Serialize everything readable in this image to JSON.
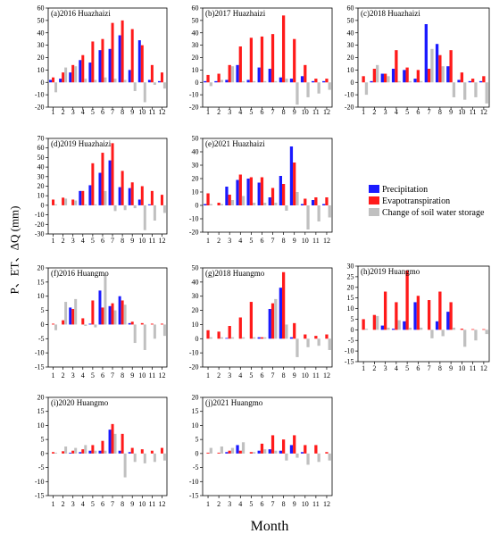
{
  "figure": {
    "ylabel": "P、ET、ΔQ (mm)",
    "xlabel": "Month",
    "legend": [
      {
        "name": "Precipitation",
        "color": "#1a1aff"
      },
      {
        "name": "Evapotranspiration",
        "color": "#ff1a1a"
      },
      {
        "name": "Change of soil water storage",
        "color": "#c0c0c0"
      }
    ]
  },
  "chart_data": [
    {
      "type": "bar",
      "title": "(a)2016 Huazhaizi",
      "categories": [
        "1",
        "2",
        "3",
        "4",
        "5",
        "6",
        "7",
        "8",
        "9",
        "10",
        "11",
        "12"
      ],
      "ylim": [
        -20,
        60
      ],
      "yticks": [
        60,
        50,
        40,
        30,
        20,
        10,
        0,
        -10,
        -20
      ],
      "series": [
        {
          "values": [
            2,
            3,
            8,
            18,
            16,
            26,
            27,
            38,
            10,
            34,
            2,
            1
          ]
        },
        {
          "values": [
            4,
            8,
            14,
            22,
            33,
            35,
            48,
            50,
            43,
            30,
            14,
            8
          ]
        },
        {
          "values": [
            -8,
            12,
            13,
            3,
            2,
            4,
            3,
            2,
            -7,
            -16,
            -2,
            -5
          ]
        }
      ]
    },
    {
      "type": "bar",
      "title": "(b)2017 Huazhaizi",
      "categories": [
        "1",
        "2",
        "3",
        "4",
        "5",
        "6",
        "7",
        "8",
        "9",
        "10",
        "11",
        "12"
      ],
      "ylim": [
        -20,
        60
      ],
      "yticks": [
        60,
        50,
        40,
        30,
        20,
        10,
        0,
        -10,
        -20
      ],
      "series": [
        {
          "values": [
            1,
            1,
            2,
            14,
            2,
            12,
            11,
            4,
            3,
            5,
            1,
            1
          ]
        },
        {
          "values": [
            6,
            7,
            14,
            29,
            36,
            37,
            39,
            54,
            35,
            14,
            3,
            3
          ]
        },
        {
          "values": [
            -3,
            2,
            13,
            1,
            1,
            1,
            1,
            3,
            -18,
            -12,
            -9,
            -6
          ]
        }
      ]
    },
    {
      "type": "bar",
      "title": "(c)2018 Huazhaizi",
      "categories": [
        "1",
        "2",
        "3",
        "4",
        "5",
        "6",
        "7",
        "8",
        "9",
        "10",
        "11",
        "12"
      ],
      "ylim": [
        -20,
        60
      ],
      "yticks": [
        60,
        50,
        40,
        30,
        20,
        10,
        0,
        -10,
        -20
      ],
      "series": [
        {
          "values": [
            0,
            1,
            7,
            11,
            10,
            3,
            47,
            31,
            13,
            2,
            1,
            1
          ]
        },
        {
          "values": [
            5,
            11,
            7,
            26,
            12,
            10,
            11,
            22,
            26,
            8,
            3,
            5
          ]
        },
        {
          "values": [
            -10,
            14,
            5,
            1,
            1,
            1,
            27,
            13,
            -12,
            -14,
            -12,
            -17
          ]
        }
      ]
    },
    {
      "type": "bar",
      "title": "(d)2019 Huazhaizi",
      "categories": [
        "1",
        "2",
        "3",
        "4",
        "5",
        "6",
        "7",
        "8",
        "9",
        "10",
        "11",
        "12"
      ],
      "ylim": [
        -30,
        70
      ],
      "yticks": [
        70,
        60,
        50,
        40,
        30,
        20,
        10,
        0,
        -10,
        -20,
        -30
      ],
      "series": [
        {
          "values": [
            0,
            0,
            0,
            15,
            21,
            34,
            47,
            19,
            18,
            6,
            1,
            0
          ]
        },
        {
          "values": [
            6,
            8,
            6,
            15,
            44,
            55,
            65,
            36,
            24,
            20,
            15,
            11
          ]
        },
        {
          "values": [
            1,
            7,
            5,
            1,
            1,
            15,
            -6,
            -5,
            -3,
            -26,
            -16,
            -8
          ]
        }
      ]
    },
    {
      "type": "bar",
      "title": "(e)2021 Huazhaizi",
      "categories": [
        "1",
        "2",
        "3",
        "4",
        "5",
        "6",
        "7",
        "8",
        "9",
        "10",
        "11",
        "12"
      ],
      "ylim": [
        -20,
        50
      ],
      "yticks": [
        50,
        40,
        30,
        20,
        10,
        0,
        -10,
        -20
      ],
      "series": [
        {
          "values": [
            1,
            0,
            14,
            19,
            20,
            17,
            6,
            22,
            44,
            1,
            4,
            1
          ]
        },
        {
          "values": [
            9,
            2,
            8,
            23,
            21,
            21,
            13,
            16,
            32,
            5,
            6,
            6
          ]
        },
        {
          "values": [
            1,
            1,
            4,
            7,
            2,
            2,
            2,
            -4,
            10,
            -18,
            -12,
            -9
          ]
        }
      ]
    },
    {
      "type": "bar",
      "title": "(f)2016 Huangmo",
      "categories": [
        "1",
        "2",
        "3",
        "4",
        "5",
        "6",
        "7",
        "8",
        "9",
        "10",
        "11",
        "12"
      ],
      "ylim": [
        -15,
        20
      ],
      "yticks": [
        20,
        15,
        10,
        5,
        0,
        -5,
        -10,
        -15
      ],
      "series": [
        {
          "values": [
            0,
            0,
            6,
            0,
            0.3,
            12,
            6.5,
            10,
            0.5,
            0,
            0,
            0
          ]
        },
        {
          "values": [
            0.3,
            1.5,
            5.5,
            2.2,
            8.5,
            6,
            7.5,
            8.5,
            1,
            0.5,
            0.3,
            0.3
          ]
        },
        {
          "values": [
            -2,
            8,
            9,
            -0.5,
            -1,
            17.5,
            5,
            7,
            -6.5,
            -9,
            -5,
            -4
          ]
        }
      ]
    },
    {
      "type": "bar",
      "title": "(g)2018 Huangmo",
      "categories": [
        "1",
        "2",
        "3",
        "4",
        "5",
        "6",
        "7",
        "8",
        "9",
        "10",
        "11",
        "12"
      ],
      "ylim": [
        -20,
        50
      ],
      "yticks": [
        50,
        40,
        30,
        20,
        10,
        0,
        -10,
        -20
      ],
      "series": [
        {
          "values": [
            0,
            0,
            0.5,
            0,
            0,
            1,
            21,
            36,
            1,
            0,
            0,
            0
          ]
        },
        {
          "values": [
            6,
            5,
            9,
            15,
            26,
            1,
            25,
            47,
            11,
            3,
            2,
            3
          ]
        },
        {
          "values": [
            1,
            1,
            1,
            1,
            1,
            1,
            28,
            10,
            -13,
            -6,
            -5,
            -8
          ]
        }
      ]
    },
    {
      "type": "bar",
      "title": "(h)2019 Huangmo",
      "categories": [
        "1",
        "2",
        "3",
        "4",
        "5",
        "6",
        "7",
        "8",
        "9",
        "10",
        "11",
        "12"
      ],
      "ylim": [
        -15,
        30
      ],
      "yticks": [
        30,
        25,
        20,
        15,
        10,
        5,
        0,
        -5,
        -10,
        -15
      ],
      "series": [
        {
          "values": [
            0,
            0,
            2,
            0.5,
            4,
            13,
            0,
            4,
            8.5,
            0,
            0,
            0
          ]
        },
        {
          "values": [
            5,
            7,
            18,
            13,
            28,
            16,
            14,
            18,
            13,
            0.5,
            0.3,
            0.3
          ]
        },
        {
          "values": [
            0.5,
            6.5,
            1,
            4.5,
            1,
            1,
            -4,
            -3,
            1,
            -8,
            -5,
            -2
          ]
        }
      ]
    },
    {
      "type": "bar",
      "title": "(i)2020 Huangmo",
      "categories": [
        "1",
        "2",
        "3",
        "4",
        "5",
        "6",
        "7",
        "8",
        "9",
        "10",
        "11",
        "12"
      ],
      "ylim": [
        -15,
        20
      ],
      "yticks": [
        20,
        15,
        10,
        5,
        0,
        -5,
        -10,
        -15
      ],
      "series": [
        {
          "values": [
            0,
            0,
            0.3,
            0.5,
            1,
            1,
            8.5,
            1,
            0.5,
            0,
            0,
            0
          ]
        },
        {
          "values": [
            0.5,
            0.8,
            1,
            1.5,
            3,
            4.5,
            10.5,
            7,
            2,
            1.5,
            1,
            2
          ]
        },
        {
          "values": [
            0.3,
            2.5,
            2,
            3,
            1,
            1,
            7,
            -8.5,
            -3,
            -3.5,
            -3,
            -2.5
          ]
        }
      ]
    },
    {
      "type": "bar",
      "title": "(j)2021 Huangmo",
      "categories": [
        "1",
        "2",
        "3",
        "4",
        "5",
        "6",
        "7",
        "8",
        "9",
        "10",
        "11",
        "12"
      ],
      "ylim": [
        -15,
        20
      ],
      "yticks": [
        20,
        15,
        10,
        5,
        0,
        -5,
        -10,
        -15
      ],
      "series": [
        {
          "values": [
            0,
            0,
            0.5,
            3,
            0,
            1,
            1.5,
            1,
            3,
            0.5,
            0,
            0
          ]
        },
        {
          "values": [
            0.3,
            0.3,
            1,
            1,
            0.5,
            3.5,
            6.5,
            5,
            6.5,
            3,
            3,
            0.5
          ]
        },
        {
          "values": [
            2,
            2.5,
            2,
            4,
            0.5,
            1.5,
            1,
            -2.5,
            -1.5,
            -4,
            -3,
            -2.5
          ]
        }
      ]
    }
  ]
}
